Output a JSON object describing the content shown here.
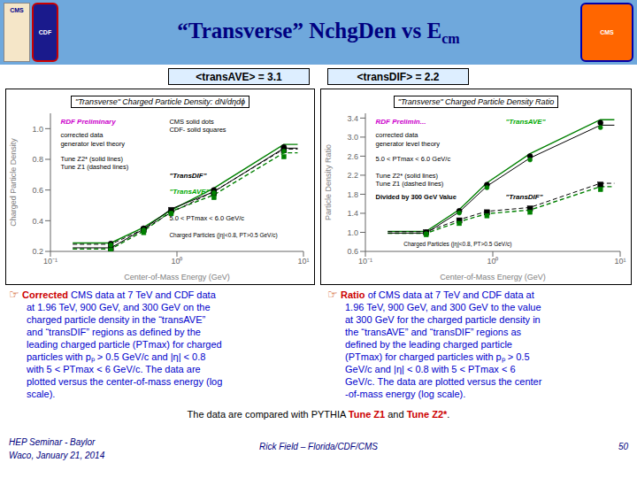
{
  "title": "“Transverse” NchgDen vs E",
  "annotations": [
    "cm",
    "CMS",
    "CDF",
    "CMS",
    "<transAVE> = 3.1",
    "<transDIF> = 2.2",
    "☞",
    "Corrected",
    "CMS data at 7 TeV and CDF data",
    "at 1.96 TeV, 900 GeV, and 300 GeV on the\ncharged particle density in the “transAVE”\nand “transDIF” regions as defined by the\nleading charged particle (PTmax) for charged\nparticles with pₚ > 0.5 GeV/c and |η| < 0.8\nwith 5 < PTmax < 6 GeV/c. The data are\nplotted versus the center-of-mass energy (log\nscale).",
    "Ratio",
    "of CMS data at 7 TeV and CDF data at",
    "1.96 TeV, 900 GeV, and 300 GeV to the value\nat 300 GeV for the charged particle density in\nthe “transAVE” and “transDIF” regions as\ndefined by the leading charged particle\n(PTmax) for charged particles with pₚ > 0.5\nGeV/c and |η| < 0.8 with 5 < PTmax < 6\nGeV/c. The data are plotted versus the center\n-of-mass energy (log scale).",
    "The data are compared with PYTHIA",
    "Tune Z1",
    "and",
    "Tune Z2*",
    ".",
    "HEP Seminar - Baylor",
    "Waco, January 21, 2014",
    "Rick Field – Florida/CDF/CMS",
    "50"
  ],
  "chart_data": [
    {
      "type": "line",
      "title": "\"Transverse\" Charged Particle Density: dN/dηdϕ",
      "x_label": "Center-of-Mass Energy  (GeV)",
      "y_label": "Charged Particle Density",
      "log": "x",
      "grid": false,
      "xlim": [
        0.1,
        10
      ],
      "xticks": [
        {
          "value": 0.1,
          "label": "10⁻¹"
        },
        {
          "value": 1,
          "label": "10⁰"
        },
        {
          "value": 10,
          "label": "10¹"
        }
      ],
      "ylim": [
        0.2,
        1.1
      ],
      "yticks": [
        0.2,
        0.4,
        0.6,
        0.8,
        {
          "value": 1,
          "label": "1.0"
        }
      ],
      "x": [
        0.15,
        0.3,
        0.546,
        0.9,
        1.96,
        7.0,
        9
      ],
      "series": [
        {
          "type": "line",
          "color": "green",
          "line_style": "solid",
          "values": [
            0.255,
            0.255,
            0.357,
            0.4692,
            0.612,
            0.8976,
            0.8976
          ]
        },
        {
          "type": "line",
          "color": "green",
          "line_style": "dashed",
          "values": [
            0.2156,
            0.2156,
            0.3332,
            0.4606,
            0.5684,
            0.8428,
            0.8428
          ]
        },
        {
          "type": "line",
          "color": "black",
          "line_style": "solid",
          "values": [
            0.2233,
            0.2233,
            0.3451,
            0.47705,
            0.5887,
            0.8729,
            0.8729
          ]
        },
        {
          "type": "line",
          "color": "black",
          "line_style": "dashed",
          "values": [
            0.24625,
            0.24625,
            0.34475,
            0.4531,
            0.591,
            0.8668,
            0.8668
          ]
        },
        {
          "type": "scatter",
          "color": "black",
          "marker": "square",
          "values": [
            null,
            0.22,
            0.34,
            0.47,
            0.58,
            0.86,
            null
          ]
        },
        {
          "type": "scatter",
          "color": "black",
          "marker": "circle",
          "values": [
            null,
            0.25,
            0.35,
            0.46,
            0.6,
            0.88,
            null
          ]
        },
        {
          "type": "scatter",
          "color": "green",
          "marker": "circle",
          "values": [
            null,
            0.2425,
            0.3395,
            0.4462,
            0.582,
            0.8536,
            null
          ]
        },
        {
          "type": "scatter",
          "color": "green",
          "marker": "square",
          "values": [
            null,
            0.209,
            0.323,
            0.4465,
            0.551,
            0.817,
            null
          ]
        }
      ],
      "annotations": [
        "RDF Preliminary",
        "corrected data\ngenerator level theory",
        "CMS solid dots\nCDF- solid squares",
        "Tune Z2* (solid lines)\nTune Z1 (dashed lines)",
        "\"TransDIF\"",
        "\"TransAVE\"",
        "5.0 < PTmax < 6.0 GeV/c",
        "Charged Particles (|η|<0.8, PT>0.5 GeV/c)"
      ]
    },
    {
      "type": "line",
      "title": "\"Transverse\" Charged Particle Density Ratio",
      "x_label": "Center-of-Mass Energy  (GeV)",
      "y_label": "Particle Density Ratio",
      "log": "x",
      "grid": false,
      "xlim": [
        0.1,
        10
      ],
      "xticks": [
        {
          "value": 0.1,
          "label": "10⁻¹"
        },
        {
          "value": 1,
          "label": "10⁰"
        },
        {
          "value": 10,
          "label": "10¹"
        }
      ],
      "ylim": [
        0.6,
        3.5
      ],
      "yticks": [
        0.6,
        {
          "value": 1,
          "label": "1.0"
        },
        1.4,
        1.8,
        2.2,
        2.6,
        {
          "value": 3,
          "label": "3.0"
        },
        3.4
      ],
      "x": [
        0.15,
        0.3,
        0.546,
        0.9,
        1.96,
        7.0,
        9
      ],
      "series": [
        {
          "type": "line",
          "color": "green",
          "line_style": "solid",
          "values": [
            1.02,
            1.02,
            1.479,
            2.04,
            2.652,
            3.366,
            3.366
          ]
        },
        {
          "type": "line",
          "color": "green",
          "line_style": "dashed",
          "values": [
            0.98,
            0.98,
            1.225,
            1.3916,
            1.47,
            1.96,
            1.96
          ]
        },
        {
          "type": "line",
          "color": "black",
          "line_style": "solid",
          "values": [
            0.985,
            0.985,
            1.42825,
            1.97,
            2.561,
            3.2505,
            3.2505
          ]
        },
        {
          "type": "line",
          "color": "black",
          "line_style": "dashed",
          "values": [
            1.015,
            1.015,
            1.26875,
            1.4413,
            1.5225,
            2.03,
            2.03
          ]
        },
        {
          "type": "scatter",
          "color": "black",
          "marker": "square",
          "values": [
            null,
            1.0,
            1.25,
            1.42,
            1.5,
            2.0,
            null
          ]
        },
        {
          "type": "scatter",
          "color": "black",
          "marker": "circle",
          "values": [
            null,
            1.0,
            1.45,
            2.0,
            2.6,
            3.3,
            null
          ]
        },
        {
          "type": "scatter",
          "color": "green",
          "marker": "circle",
          "values": [
            null,
            0.97,
            1.4065,
            1.94,
            2.522,
            3.201,
            null
          ]
        },
        {
          "type": "scatter",
          "color": "green",
          "marker": "square",
          "values": [
            null,
            0.95,
            1.1875,
            1.349,
            1.425,
            1.9,
            null
          ]
        }
      ],
      "annotations": [
        "RDF Prelimin...",
        "corrected data\ngenerator level theory",
        "5.0 < PTmax < 6.0 GeV/c",
        "Tune Z2* (solid lines)\nTune Z1 (dashed lines)",
        "Divided by 300 GeV Value",
        "\"TransAVE\"",
        "\"TransDIF\"",
        "Charged Particles (|η|<0.8, PT>0.5 GeV/c)"
      ]
    }
  ]
}
